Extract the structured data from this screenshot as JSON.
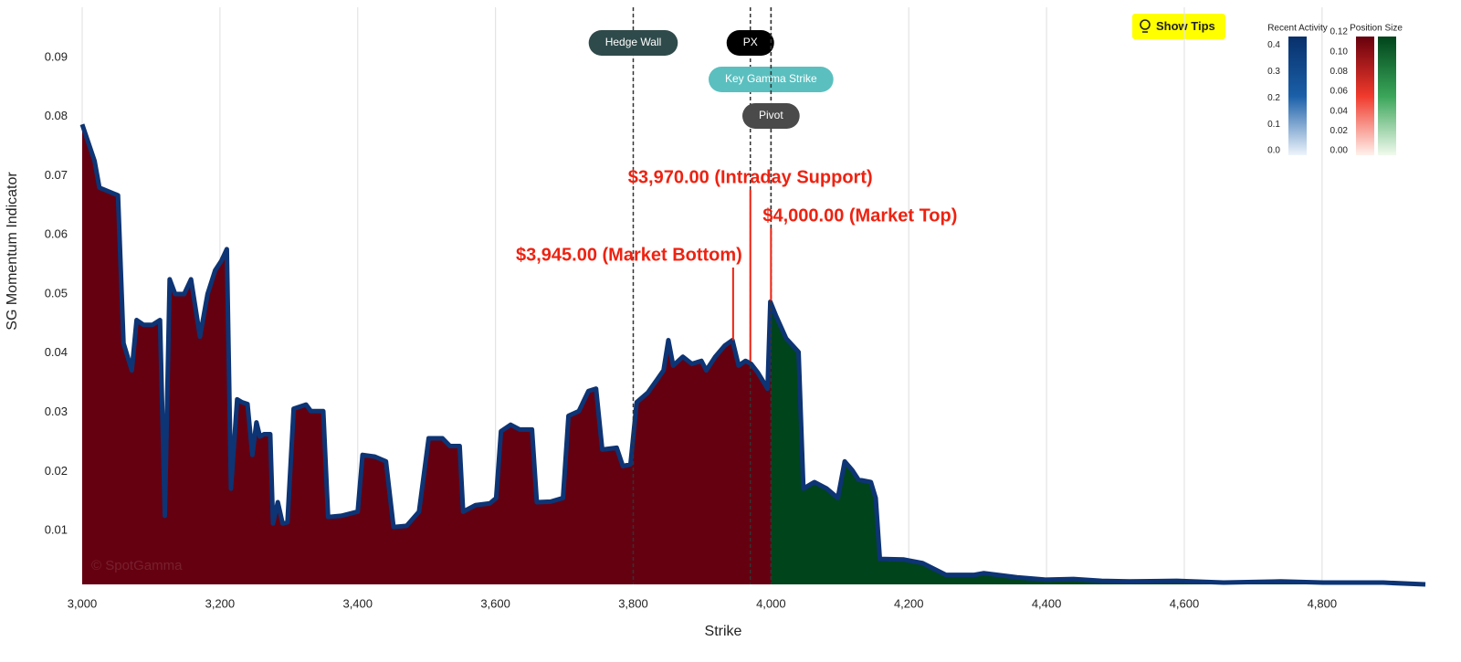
{
  "chart_data": {
    "type": "area",
    "x_label": "Strike",
    "y_label": "SG Momentum Indicator",
    "watermark": "© SpotGamma",
    "button": "Show Tips",
    "xlim": [
      3000,
      4950
    ],
    "ylim": [
      0.0009,
      0.0985
    ],
    "xticks": [
      {
        "value": 3000,
        "label": "3,000"
      },
      {
        "value": 3200,
        "label": "3,200"
      },
      {
        "value": 3400,
        "label": "3,400"
      },
      {
        "value": 3600,
        "label": "3,600"
      },
      {
        "value": 3800,
        "label": "3,800"
      },
      {
        "value": 4000,
        "label": "4,000"
      },
      {
        "value": 4200,
        "label": "4,200"
      },
      {
        "value": 4400,
        "label": "4,400"
      },
      {
        "value": 4600,
        "label": "4,600"
      },
      {
        "value": 4800,
        "label": "4,800"
      }
    ],
    "yticks": [
      0.01,
      0.02,
      0.03,
      0.04,
      0.05,
      0.06,
      0.07,
      0.08,
      0.09
    ],
    "grid": true,
    "line_color": "#0d3474",
    "fill_colors": [
      "#650010",
      "#00441b"
    ],
    "x": [
      3000,
      3018,
      3025,
      3052,
      3060,
      3072,
      3079,
      3089,
      3102,
      3113,
      3120,
      3127,
      3135,
      3148,
      3158,
      3171,
      3182,
      3193,
      3202,
      3210,
      3216,
      3225,
      3232,
      3240,
      3247,
      3253,
      3258,
      3264,
      3273,
      3277,
      3284,
      3291,
      3298,
      3307,
      3325,
      3332,
      3350,
      3357,
      3376,
      3400,
      3407,
      3425,
      3441,
      3452,
      3471,
      3489,
      3503,
      3523,
      3534,
      3548,
      3553,
      3571,
      3592,
      3601,
      3608,
      3622,
      3635,
      3653,
      3660,
      3680,
      3698,
      3706,
      3721,
      3735,
      3746,
      3755,
      3776,
      3785,
      3796,
      3805,
      3821,
      3835,
      3844,
      3851,
      3858,
      3872,
      3885,
      3899,
      3906,
      3919,
      3933,
      3944,
      3953,
      3963,
      3971,
      3981,
      3995,
      3999,
      4007,
      4022,
      4040,
      4047,
      4063,
      4081,
      4097,
      4107,
      4118,
      4127,
      4145,
      4152,
      4158,
      4193,
      4220,
      4254,
      4295,
      4309,
      4357,
      4398,
      4439,
      4480,
      4520,
      4589,
      4657,
      4740,
      4801,
      4889,
      4950
    ],
    "values": [
      0.0787,
      0.0725,
      0.068,
      0.0667,
      0.0417,
      0.0371,
      0.0456,
      0.0448,
      0.0448,
      0.0456,
      0.0125,
      0.0525,
      0.05,
      0.05,
      0.0525,
      0.0428,
      0.05,
      0.054,
      0.0556,
      0.0576,
      0.0171,
      0.0322,
      0.0317,
      0.0314,
      0.0228,
      0.0283,
      0.0259,
      0.0263,
      0.0263,
      0.0112,
      0.0148,
      0.0112,
      0.0114,
      0.0306,
      0.0313,
      0.0302,
      0.0302,
      0.0123,
      0.0125,
      0.0132,
      0.0228,
      0.0225,
      0.0217,
      0.0106,
      0.0108,
      0.0132,
      0.0256,
      0.0256,
      0.0243,
      0.0243,
      0.0132,
      0.0143,
      0.0146,
      0.0155,
      0.0268,
      0.0279,
      0.0271,
      0.0271,
      0.0148,
      0.0149,
      0.0155,
      0.0294,
      0.0302,
      0.0336,
      0.034,
      0.0237,
      0.024,
      0.0209,
      0.0212,
      0.0317,
      0.0333,
      0.0356,
      0.0371,
      0.0422,
      0.0379,
      0.0394,
      0.0382,
      0.0387,
      0.0371,
      0.0394,
      0.0413,
      0.0422,
      0.0379,
      0.0387,
      0.0382,
      0.0367,
      0.034,
      0.0487,
      0.0464,
      0.0425,
      0.0402,
      0.0171,
      0.0182,
      0.0171,
      0.0155,
      0.0217,
      0.0202,
      0.0186,
      0.0182,
      0.0155,
      0.0052,
      0.0051,
      0.0045,
      0.0025,
      0.0025,
      0.0028,
      0.0021,
      0.0017,
      0.0018,
      0.0015,
      0.0014,
      0.0015,
      0.0012,
      0.0014,
      0.0012,
      0.0012,
      0.0009
    ],
    "markers": [
      {
        "label": "Hedge Wall",
        "x": 3800,
        "color": "#2f4a4a"
      },
      {
        "label": "PX",
        "x": 3970,
        "color": "#000000"
      },
      {
        "label": "Key Gamma Strike",
        "x": 4000,
        "color": "#5bbfbf"
      },
      {
        "label": "Pivot",
        "x": 4000,
        "color": "#4a4a4a",
        "fill_split": true
      }
    ],
    "annotations": [
      {
        "x": 3945,
        "text": "$3,945.00 (Market Bottom)"
      },
      {
        "x": 3970,
        "text": "$3,970.00 (Intraday Support)"
      },
      {
        "x": 4000,
        "text": "$4,000.00 (Market Top)"
      }
    ],
    "annotation_color": "#ee2211",
    "colorbars": [
      {
        "title": "Recent Activity",
        "lim": [
          0,
          0.45
        ],
        "colors": [
          [
            "#eef4fb",
            "#1a5fa8",
            "#08306b"
          ]
        ],
        "ticks": [
          {
            "value": 0,
            "label": "0.0"
          },
          {
            "value": 0.1,
            "label": "0.1"
          },
          {
            "value": 0.2,
            "label": "0.2"
          },
          {
            "value": 0.3,
            "label": "0.3"
          },
          {
            "value": 0.4,
            "label": "0.4"
          }
        ]
      },
      {
        "title": "Position Size",
        "lim": [
          0,
          0.12
        ],
        "colors": [
          [
            "#fff1ec",
            "#f03a2c",
            "#67000d"
          ],
          [
            "#f1faee",
            "#3aa559",
            "#00441b"
          ]
        ],
        "ticks": [
          {
            "value": 0,
            "label": "0.00"
          },
          {
            "value": 0.02,
            "label": "0.02"
          },
          {
            "value": 0.04,
            "label": "0.04"
          },
          {
            "value": 0.06,
            "label": "0.06"
          },
          {
            "value": 0.08,
            "label": "0.08"
          },
          {
            "value": 0.1,
            "label": "0.10"
          },
          {
            "value": 0.12,
            "label": "0.12"
          }
        ]
      }
    ]
  }
}
